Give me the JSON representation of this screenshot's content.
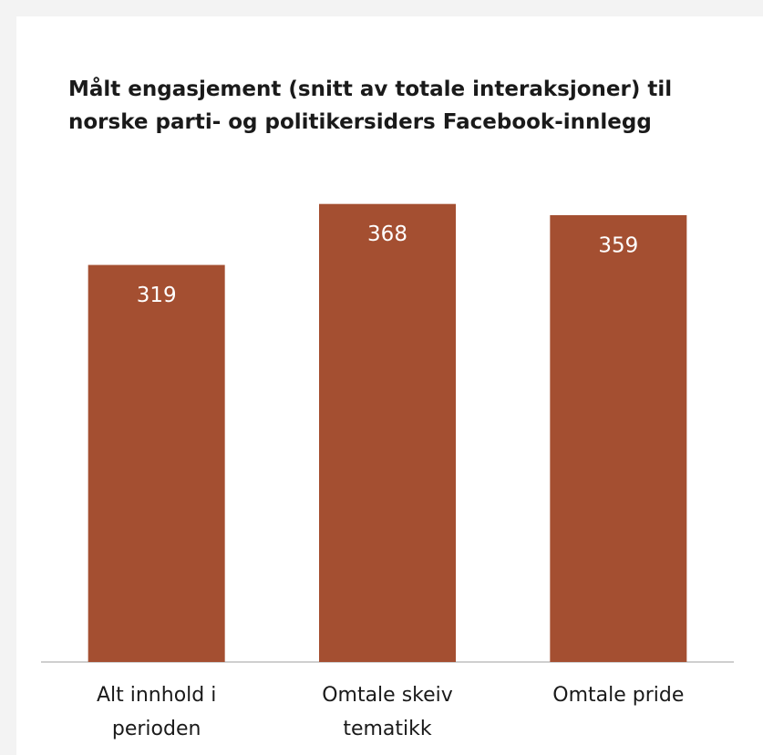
{
  "chart_data": {
    "type": "bar",
    "title": "Målt engasjement (snitt av totale interaksjoner) til norske parti- og politikersiders Facebook-innlegg",
    "categories": [
      "Alt innhold i perioden",
      "Omtale skeiv tematikk",
      "Omtale pride"
    ],
    "values": [
      319,
      368,
      359
    ],
    "color": "#a44f31",
    "ylim": [
      0,
      400
    ]
  }
}
